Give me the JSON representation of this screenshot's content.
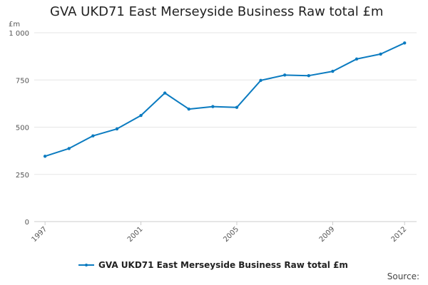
{
  "chart_data": {
    "type": "line",
    "title": "GVA UKD71 East Merseyside Business Raw total £m",
    "y_unit": "£m",
    "x": [
      1997,
      1998,
      1999,
      2000,
      2001,
      2002,
      2003,
      2004,
      2005,
      2006,
      2007,
      2008,
      2009,
      2010,
      2011,
      2012
    ],
    "series": [
      {
        "name": "GVA UKD71 East Merseyside Business Raw total £m",
        "values": [
          346,
          387,
          454,
          491,
          562,
          681,
          596,
          609,
          605,
          748,
          776,
          773,
          796,
          861,
          887,
          946
        ]
      }
    ],
    "ylim": [
      0,
      1000
    ],
    "y_ticks": [
      0,
      250,
      500,
      750,
      1000
    ],
    "y_tick_labels": [
      "0",
      "250",
      "500",
      "750",
      "1 000"
    ],
    "x_ticks": [
      1997,
      2001,
      2005,
      2009,
      2012
    ],
    "x_tick_labels": [
      "1997",
      "2001",
      "2005",
      "2009",
      "2012"
    ],
    "grid": "horizontal",
    "legend": "bottom",
    "line_color": "#0b7bc0",
    "source_label": "Source:"
  }
}
